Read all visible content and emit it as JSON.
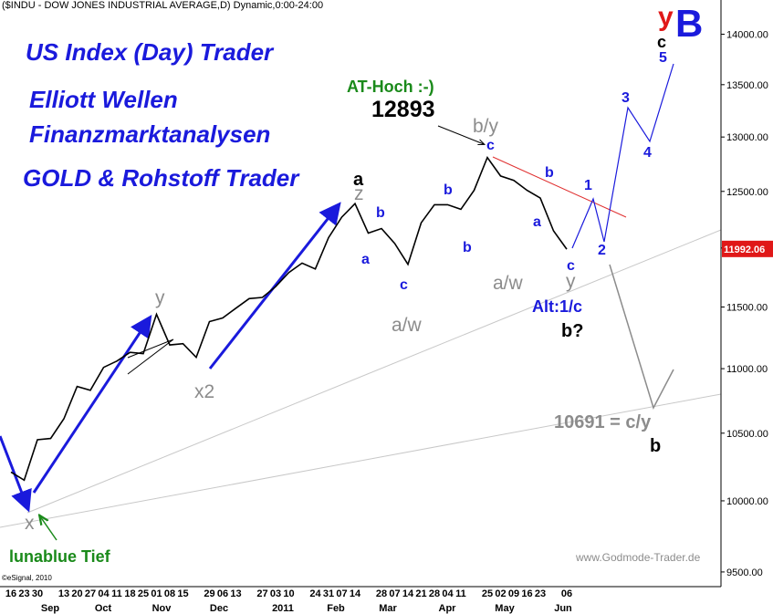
{
  "header": "($INDU - DOW JONES INDUSTRIAL AVERAGE,D) Dynamic,0:00-24:00",
  "chart_data": {
    "type": "line",
    "categories": [
      "16",
      "23",
      "30",
      null,
      "13",
      "20",
      "27",
      "04",
      "11",
      "18",
      "25",
      "01",
      "08",
      "15",
      null,
      "29",
      "06",
      "13",
      null,
      "27",
      "03",
      "10",
      null,
      "24",
      "31",
      "07",
      "14",
      null,
      "28",
      "07",
      "14",
      "21",
      "28",
      "04",
      "11",
      null,
      "25",
      "02",
      "09",
      "16",
      "23",
      null,
      "06"
    ],
    "x_groups": [
      "Sep",
      "Oct",
      "Nov",
      "Dec",
      "2011",
      "Feb",
      "Mar",
      "Apr",
      "May",
      "Jun"
    ],
    "values": [
      10210,
      10150,
      10450,
      10460,
      10610,
      10860,
      10830,
      11010,
      11060,
      11130,
      11120,
      11440,
      11190,
      11200,
      11090,
      11380,
      11410,
      11490,
      11570,
      11580,
      11670,
      11790,
      11870,
      11820,
      12090,
      12270,
      12390,
      12130,
      12170,
      12040,
      11860,
      12220,
      12380,
      12380,
      12340,
      12510,
      12810,
      12640,
      12600,
      12510,
      12440,
      12150,
      11990
    ],
    "color": "#000000",
    "log_scale": true,
    "ylim": [
      9400,
      14350
    ],
    "yticks": [
      {
        "value": 9500,
        "label": "9500.00"
      },
      {
        "value": 10000,
        "label": "10000.00"
      },
      {
        "value": 10500,
        "label": "10500.00"
      },
      {
        "value": 11000,
        "label": "11000.00"
      },
      {
        "value": 11500,
        "label": "11500.00"
      },
      {
        "value": 12000,
        "label": "12000.00"
      },
      {
        "value": 12500,
        "label": "12500.00"
      },
      {
        "value": 13000,
        "label": "13000.00"
      },
      {
        "value": 13500,
        "label": "13500.00"
      },
      {
        "value": 14000,
        "label": "14000.00"
      }
    ],
    "last_price": 11992.06,
    "at_high": 12893,
    "annotations": [
      "US Index (Day) Trader",
      "Elliott Wellen",
      "Finanzmarktanalysen",
      "GOLD & Rohstoff Trader",
      "a",
      "z",
      "AT-Hoch :-)",
      "b/y",
      "c",
      "b",
      "a",
      "b",
      "b",
      "c",
      "a/w",
      "y",
      "x2",
      "x",
      "lunablue Tief",
      "b",
      "a",
      "c",
      "y",
      "a/w",
      "Alt:1/c",
      "b?",
      "1",
      "2",
      "3",
      "4",
      "5",
      "c",
      "y",
      "B",
      "10691 = c/y",
      "b"
    ]
  },
  "watermark": "www.Godmode-Trader.de",
  "copyright": "©eSignal, 2010"
}
